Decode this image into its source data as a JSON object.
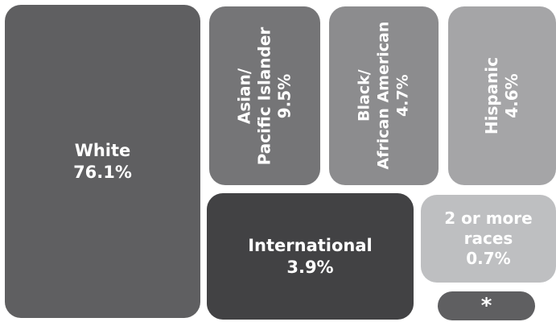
{
  "chart_data": {
    "type": "treemap",
    "title": "",
    "items": [
      {
        "name": "White",
        "value": 76.1,
        "label": "76.1%",
        "color": "#5f5f61"
      },
      {
        "name": "Asian/\nPacific Islander",
        "value": 9.5,
        "label": "9.5%",
        "color": "#757577"
      },
      {
        "name": "Black/\nAfrican American",
        "value": 4.7,
        "label": "4.7%",
        "color": "#8c8c8e"
      },
      {
        "name": "Hispanic",
        "value": 4.6,
        "label": "4.6%",
        "color": "#a5a5a7"
      },
      {
        "name": "International",
        "value": 3.9,
        "label": "3.9%",
        "color": "#424244"
      },
      {
        "name": "2 or more\nraces",
        "value": 0.7,
        "label": "0.7%",
        "color": "#bebfc1"
      },
      {
        "name": "*",
        "label": "",
        "color": "#5f5f61"
      }
    ]
  }
}
